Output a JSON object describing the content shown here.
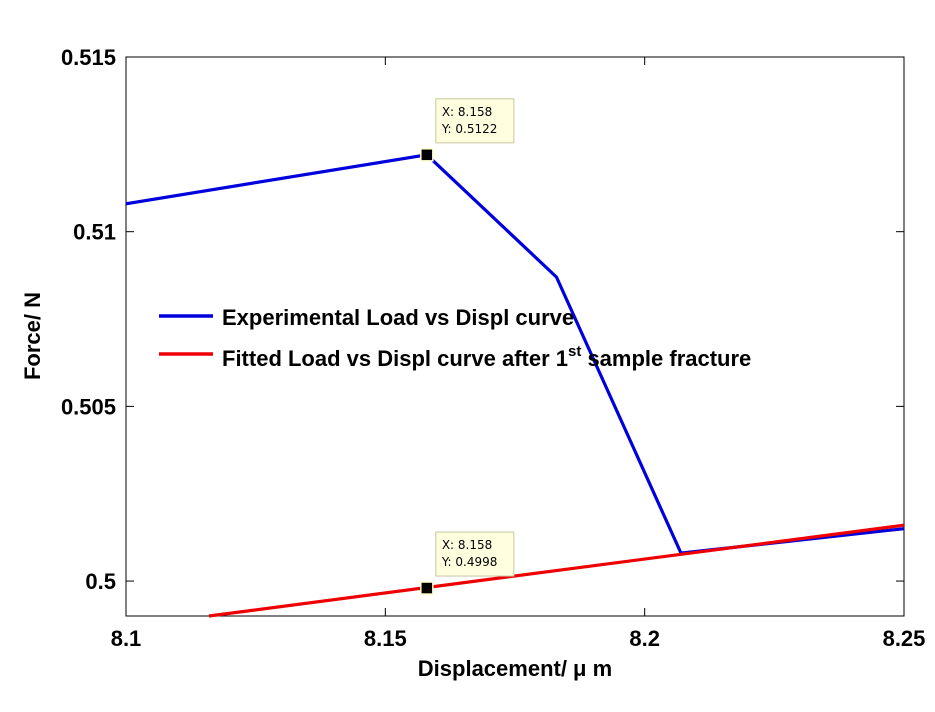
{
  "chart_data": {
    "type": "line",
    "xlabel": "Displacement/ μ m",
    "ylabel": "Force/ N",
    "xlim": [
      8.1,
      8.25
    ],
    "ylim": [
      0.499,
      0.515
    ],
    "x_ticks": [
      "8.1",
      "8.15",
      "8.2",
      "8.25"
    ],
    "x_tick_values": [
      8.1,
      8.15,
      8.2,
      8.25
    ],
    "y_ticks": [
      "0.5",
      "0.505",
      "0.51",
      "0.515"
    ],
    "y_tick_values": [
      0.5,
      0.505,
      0.51,
      0.515
    ],
    "grid": false,
    "legend_position": "center-left",
    "series": [
      {
        "name": "Experimental Load vs Displ curve",
        "color": "#0000dd",
        "x": [
          8.1,
          8.158,
          8.183,
          8.207,
          8.25
        ],
        "y": [
          0.5108,
          0.5122,
          0.5087,
          0.5008,
          0.5015
        ]
      },
      {
        "name_prefix": "Fitted Load vs Displ curve after 1",
        "name_sup": "st",
        "name_suffix": " sample fracture",
        "color": "#ee0000",
        "x": [
          8.116,
          8.25
        ],
        "y": [
          0.499,
          0.5016
        ]
      }
    ],
    "annotations": [
      {
        "x_label": "X: 8.158",
        "y_label": "Y: 0.5122",
        "x": 8.158,
        "y": 0.5122,
        "series": 0
      },
      {
        "x_label": "X: 8.158",
        "y_label": "Y: 0.4998",
        "x": 8.158,
        "y": 0.4998,
        "series": 1
      }
    ]
  }
}
